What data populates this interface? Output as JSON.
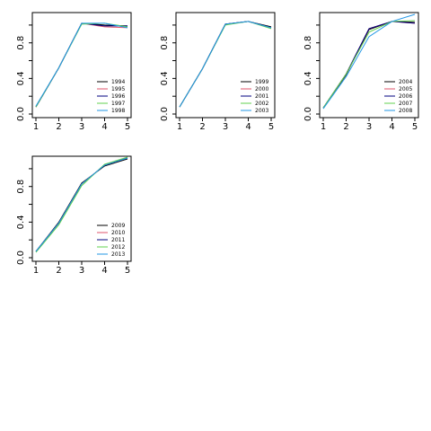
{
  "chart_data": [
    {
      "type": "line",
      "x": [
        1,
        2,
        3,
        4,
        5
      ],
      "ylim": [
        0,
        1.1
      ],
      "yticks": [
        "0.0",
        "0.4",
        "0.8"
      ],
      "xticks": [
        "1",
        "2",
        "3",
        "4",
        "5"
      ],
      "legend_position": "bottom-right",
      "series": [
        {
          "name": "1994",
          "color": "#000000",
          "values": [
            0.08,
            0.52,
            1.02,
            1.0,
            0.99
          ]
        },
        {
          "name": "1995",
          "color": "#df536b",
          "values": [
            0.08,
            0.52,
            1.02,
            0.98,
            0.97
          ]
        },
        {
          "name": "1996",
          "color": "#000080",
          "values": [
            0.08,
            0.52,
            1.02,
            0.99,
            0.99
          ]
        },
        {
          "name": "1997",
          "color": "#61d04f",
          "values": [
            0.08,
            0.52,
            1.01,
            1.02,
            0.98
          ]
        },
        {
          "name": "1998",
          "color": "#2297e6",
          "values": [
            0.09,
            0.52,
            1.02,
            1.02,
            0.97
          ]
        }
      ]
    },
    {
      "type": "line",
      "x": [
        1,
        2,
        3,
        4,
        5
      ],
      "ylim": [
        0,
        1.1
      ],
      "yticks": [
        "0.0",
        "0.4",
        "0.8"
      ],
      "xticks": [
        "1",
        "2",
        "3",
        "4",
        "5"
      ],
      "legend_position": "bottom-right",
      "series": [
        {
          "name": "1999",
          "color": "#000000",
          "values": [
            0.08,
            0.51,
            1.01,
            1.04,
            0.98
          ]
        },
        {
          "name": "2000",
          "color": "#df536b",
          "values": [
            0.08,
            0.51,
            1.01,
            1.04,
            0.97
          ]
        },
        {
          "name": "2001",
          "color": "#000080",
          "values": [
            0.08,
            0.51,
            1.01,
            1.04,
            0.97
          ]
        },
        {
          "name": "2002",
          "color": "#61d04f",
          "values": [
            0.08,
            0.51,
            1.0,
            1.04,
            0.96
          ]
        },
        {
          "name": "2003",
          "color": "#2297e6",
          "values": [
            0.08,
            0.51,
            1.01,
            1.04,
            0.97
          ]
        }
      ]
    },
    {
      "type": "line",
      "x": [
        1,
        2,
        3,
        4,
        5
      ],
      "ylim": [
        0,
        1.1
      ],
      "yticks": [
        "0.0",
        "0.4",
        "0.8"
      ],
      "xticks": [
        "1",
        "2",
        "3",
        "4",
        "5"
      ],
      "legend_position": "bottom-right",
      "series": [
        {
          "name": "2004",
          "color": "#000000",
          "values": [
            0.07,
            0.44,
            0.95,
            1.04,
            1.03
          ]
        },
        {
          "name": "2005",
          "color": "#df536b",
          "values": [
            0.07,
            0.45,
            0.96,
            1.04,
            1.02
          ]
        },
        {
          "name": "2006",
          "color": "#000080",
          "values": [
            0.07,
            0.45,
            0.96,
            1.04,
            1.02
          ]
        },
        {
          "name": "2007",
          "color": "#61d04f",
          "values": [
            0.07,
            0.45,
            0.92,
            1.04,
            1.05
          ]
        },
        {
          "name": "2008",
          "color": "#2297e6",
          "values": [
            0.06,
            0.42,
            0.87,
            1.04,
            1.12
          ]
        }
      ]
    },
    {
      "type": "line",
      "x": [
        1,
        2,
        3,
        4,
        5
      ],
      "ylim": [
        0,
        1.1
      ],
      "yticks": [
        "0.0",
        "0.4",
        "0.8"
      ],
      "xticks": [
        "1",
        "2",
        "3",
        "4",
        "5"
      ],
      "legend_position": "bottom-right",
      "series": [
        {
          "name": "2009",
          "color": "#000000",
          "values": [
            0.07,
            0.4,
            0.84,
            1.03,
            1.11
          ]
        },
        {
          "name": "2010",
          "color": "#df536b",
          "values": [
            0.07,
            0.39,
            0.83,
            1.04,
            1.12
          ]
        },
        {
          "name": "2011",
          "color": "#000080",
          "values": [
            0.07,
            0.39,
            0.83,
            1.04,
            1.12
          ]
        },
        {
          "name": "2012",
          "color": "#61d04f",
          "values": [
            0.06,
            0.37,
            0.81,
            1.05,
            1.13
          ]
        },
        {
          "name": "2013",
          "color": "#2297e6",
          "values": [
            0.07,
            0.39,
            0.83,
            1.04,
            1.12
          ]
        }
      ]
    }
  ]
}
